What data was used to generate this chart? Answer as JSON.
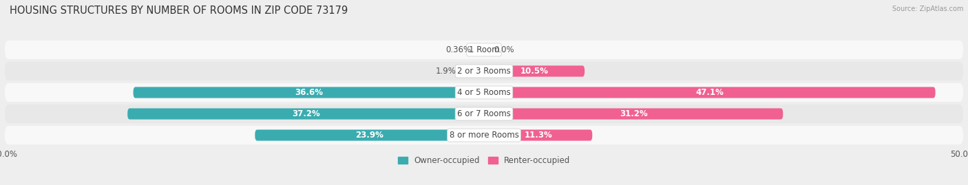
{
  "title": "HOUSING STRUCTURES BY NUMBER OF ROOMS IN ZIP CODE 73179",
  "source": "Source: ZipAtlas.com",
  "categories": [
    "1 Room",
    "2 or 3 Rooms",
    "4 or 5 Rooms",
    "6 or 7 Rooms",
    "8 or more Rooms"
  ],
  "owner_values": [
    0.36,
    1.9,
    36.6,
    37.2,
    23.9
  ],
  "renter_values": [
    0.0,
    10.5,
    47.1,
    31.2,
    11.3
  ],
  "owner_color_light": "#7ecfcf",
  "owner_color_dark": "#3aacb0",
  "renter_color_light": "#f7afc9",
  "renter_color_dark": "#f06090",
  "bg_color": "#eeeeee",
  "row_color_odd": "#f8f8f8",
  "row_color_even": "#e8e8e8",
  "xlim": [
    -50,
    50
  ],
  "title_fontsize": 10.5,
  "label_fontsize": 8.5,
  "bar_height": 0.52,
  "category_fontsize": 8.5,
  "threshold": 10
}
